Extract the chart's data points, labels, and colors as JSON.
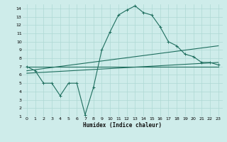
{
  "xlabel": "Humidex (Indice chaleur)",
  "bg_color": "#ceecea",
  "grid_color": "#aed8d4",
  "line_color": "#1e6e5e",
  "xlim": [
    -0.5,
    23.5
  ],
  "ylim": [
    1,
    14.5
  ],
  "xticks": [
    0,
    1,
    2,
    3,
    4,
    5,
    6,
    7,
    8,
    9,
    10,
    11,
    12,
    13,
    14,
    15,
    16,
    17,
    18,
    19,
    20,
    21,
    22,
    23
  ],
  "yticks": [
    1,
    2,
    3,
    4,
    5,
    6,
    7,
    8,
    9,
    10,
    11,
    12,
    13,
    14
  ],
  "series1_x": [
    0,
    1,
    2,
    3,
    4,
    5,
    6,
    7,
    8,
    9,
    10,
    11,
    12,
    13,
    14,
    15,
    16,
    17,
    18,
    19,
    20,
    21,
    22,
    23
  ],
  "series1_y": [
    7.0,
    6.5,
    5.0,
    5.0,
    3.5,
    5.0,
    5.0,
    1.2,
    4.5,
    9.0,
    11.2,
    13.2,
    13.8,
    14.3,
    13.5,
    13.2,
    11.8,
    10.0,
    9.5,
    8.5,
    8.2,
    7.5,
    7.5,
    7.2
  ],
  "series2_x": [
    0,
    23
  ],
  "series2_y": [
    7.0,
    7.0
  ],
  "series3_x": [
    0,
    23
  ],
  "series3_y": [
    6.5,
    9.5
  ],
  "series4_x": [
    0,
    23
  ],
  "series4_y": [
    6.2,
    7.5
  ]
}
